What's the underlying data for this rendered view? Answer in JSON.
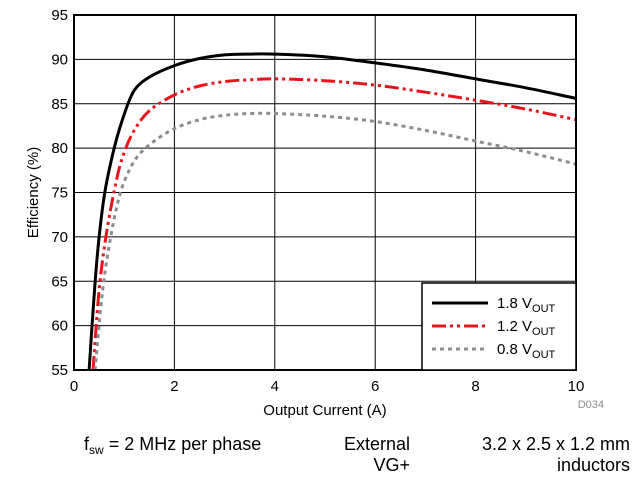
{
  "chart_data": {
    "type": "line",
    "xlabel": "Output Current (A)",
    "ylabel": "Efficiency (%)",
    "xlim": [
      0,
      10
    ],
    "ylim": [
      55,
      95
    ],
    "x_ticks": [
      0,
      2,
      4,
      6,
      8,
      10
    ],
    "y_ticks": [
      55,
      60,
      65,
      70,
      75,
      80,
      85,
      90,
      95
    ],
    "grid": true,
    "legend_placement": "bottom-right",
    "figure_id": "D034",
    "series": [
      {
        "name": "1.8 V",
        "name_subscript": "OUT",
        "color": "#000000",
        "dash": "solid",
        "x": [
          0.3,
          0.45,
          0.6,
          0.8,
          1.0,
          1.2,
          1.5,
          2.0,
          2.5,
          3.0,
          3.5,
          4.0,
          5.0,
          6.0,
          7.0,
          8.0,
          9.0,
          10.0
        ],
        "y": [
          55.0,
          67.0,
          74.5,
          80.0,
          83.8,
          86.5,
          88.0,
          89.3,
          90.1,
          90.5,
          90.6,
          90.6,
          90.3,
          89.6,
          88.8,
          87.8,
          86.8,
          85.6
        ]
      },
      {
        "name": "1.2 V",
        "name_subscript": "OUT",
        "color": "#e8141b",
        "dash": "dash-dot-dot",
        "x": [
          0.38,
          0.5,
          0.65,
          0.85,
          1.0,
          1.2,
          1.5,
          2.0,
          2.5,
          3.0,
          3.5,
          4.0,
          5.0,
          6.0,
          7.0,
          8.0,
          9.0,
          10.0
        ],
        "y": [
          55.0,
          64.0,
          70.5,
          76.5,
          79.5,
          82.0,
          84.2,
          86.0,
          87.0,
          87.5,
          87.7,
          87.8,
          87.6,
          87.1,
          86.3,
          85.4,
          84.4,
          83.2
        ]
      },
      {
        "name": "0.8 V",
        "name_subscript": "OUT",
        "color": "#8c8c8c",
        "dash": "dotted",
        "x": [
          0.42,
          0.55,
          0.7,
          0.9,
          1.1,
          1.3,
          1.6,
          2.0,
          2.5,
          3.0,
          3.5,
          4.0,
          5.0,
          6.0,
          7.0,
          8.0,
          9.0,
          10.0
        ],
        "y": [
          55.0,
          63.0,
          69.0,
          74.5,
          77.5,
          79.3,
          80.8,
          82.2,
          83.2,
          83.7,
          83.9,
          83.9,
          83.6,
          83.0,
          82.0,
          80.8,
          79.6,
          78.2
        ]
      }
    ]
  },
  "caption": {
    "left_main": "f",
    "left_sub": "sw",
    "left_rest": " = 2 MHz per phase",
    "middle_line1": "External",
    "middle_line2": "VG+",
    "right_line1": "3.2 x 2.5 x 1.2 mm",
    "right_line2": "inductors"
  }
}
